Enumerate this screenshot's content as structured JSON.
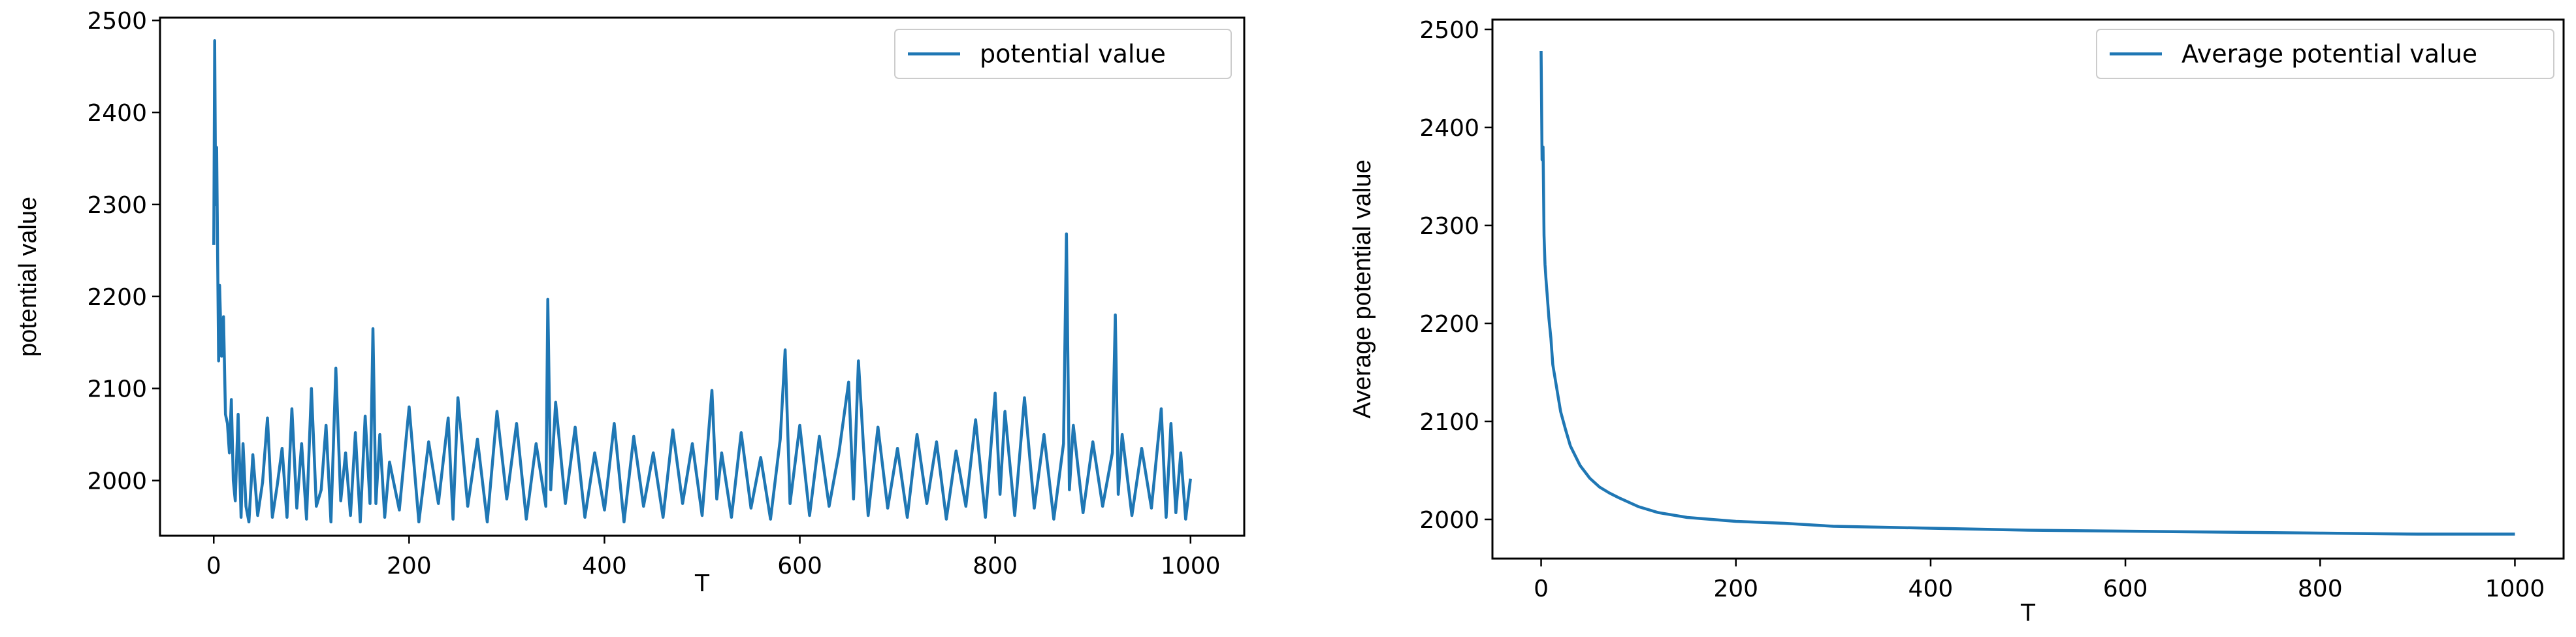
{
  "chart_data": [
    {
      "type": "line",
      "xlabel": "T",
      "ylabel": "potential value",
      "xlim": [
        -55,
        1055
      ],
      "ylim": [
        1940,
        2503
      ],
      "xticks": [
        0,
        200,
        400,
        600,
        800,
        1000
      ],
      "yticks": [
        2000,
        2100,
        2200,
        2300,
        2400,
        2500
      ],
      "xtick_labels": [
        "0",
        "200",
        "400",
        "600",
        "800",
        "1000"
      ],
      "ytick_labels": [
        "2000",
        "2100",
        "2200",
        "2300",
        "2400",
        "2500"
      ],
      "legend_position": "top-right",
      "legend_label": "potential value",
      "color": "#1f77b4",
      "series": [
        {
          "name": "potential value",
          "x": [
            0,
            1,
            2,
            3,
            4,
            5,
            6,
            8,
            10,
            12,
            14,
            16,
            18,
            20,
            22,
            25,
            28,
            30,
            33,
            36,
            40,
            45,
            50,
            55,
            60,
            65,
            70,
            75,
            80,
            85,
            90,
            95,
            100,
            105,
            110,
            115,
            120,
            125,
            130,
            135,
            140,
            145,
            150,
            155,
            160,
            163,
            166,
            170,
            175,
            180,
            190,
            200,
            210,
            220,
            230,
            240,
            245,
            250,
            260,
            270,
            280,
            290,
            300,
            310,
            320,
            330,
            340,
            342,
            345,
            350,
            360,
            370,
            380,
            390,
            400,
            410,
            420,
            430,
            440,
            450,
            460,
            470,
            480,
            490,
            500,
            510,
            515,
            520,
            530,
            540,
            550,
            560,
            570,
            580,
            585,
            590,
            600,
            610,
            620,
            630,
            640,
            650,
            655,
            660,
            665,
            670,
            680,
            690,
            700,
            710,
            720,
            730,
            740,
            750,
            760,
            770,
            780,
            790,
            800,
            805,
            810,
            820,
            830,
            840,
            850,
            860,
            870,
            873,
            876,
            880,
            890,
            900,
            910,
            920,
            923,
            926,
            930,
            940,
            950,
            960,
            970,
            975,
            980,
            985,
            990,
            995,
            1000
          ],
          "values": [
            2256,
            2478,
            2300,
            2362,
            2245,
            2130,
            2212,
            2135,
            2178,
            2072,
            2062,
            2030,
            2088,
            2000,
            1978,
            2072,
            1960,
            2040,
            1972,
            1955,
            2028,
            1962,
            1998,
            2068,
            1960,
            1995,
            2035,
            1960,
            2078,
            1970,
            2040,
            1958,
            2100,
            1972,
            1990,
            2060,
            1955,
            2122,
            1978,
            2030,
            1962,
            2052,
            1955,
            2070,
            1975,
            2165,
            1975,
            2050,
            1960,
            2020,
            1968,
            2080,
            1955,
            2042,
            1975,
            2068,
            1958,
            2090,
            1972,
            2045,
            1955,
            2075,
            1980,
            2062,
            1958,
            2040,
            1972,
            2197,
            1990,
            2085,
            1975,
            2058,
            1960,
            2030,
            1968,
            2062,
            1955,
            2048,
            1972,
            2030,
            1960,
            2055,
            1975,
            2040,
            1962,
            2098,
            1980,
            2030,
            1960,
            2052,
            1970,
            2025,
            1958,
            2045,
            2142,
            1975,
            2060,
            1962,
            2048,
            1972,
            2030,
            2107,
            1980,
            2130,
            2040,
            1962,
            2058,
            1970,
            2035,
            1960,
            2050,
            1975,
            2042,
            1958,
            2032,
            1972,
            2066,
            1960,
            2095,
            1985,
            2075,
            1962,
            2090,
            1970,
            2050,
            1958,
            2040,
            2268,
            1990,
            2060,
            1965,
            2042,
            1972,
            2030,
            2180,
            1985,
            2050,
            1962,
            2035,
            1970,
            2078,
            1960,
            2062,
            1965,
            2030,
            1958,
            2002
          ]
        }
      ]
    },
    {
      "type": "line",
      "xlabel": "T",
      "ylabel": "Average potential value",
      "xlim": [
        -50,
        1050
      ],
      "ylim": [
        1960,
        2510
      ],
      "xticks": [
        0,
        200,
        400,
        600,
        800,
        1000
      ],
      "yticks": [
        2000,
        2100,
        2200,
        2300,
        2400,
        2500
      ],
      "xtick_labels": [
        "0",
        "200",
        "400",
        "600",
        "800",
        "1000"
      ],
      "ytick_labels": [
        "2000",
        "2100",
        "2200",
        "2300",
        "2400",
        "2500"
      ],
      "legend_position": "top-right",
      "legend_label": "Average potential value",
      "color": "#1f77b4",
      "series": [
        {
          "name": "Average potential value",
          "x": [
            0,
            1,
            2,
            3,
            4,
            5,
            6,
            8,
            10,
            12,
            15,
            20,
            25,
            30,
            40,
            50,
            60,
            70,
            80,
            100,
            120,
            150,
            200,
            250,
            300,
            350,
            400,
            450,
            500,
            600,
            700,
            800,
            900,
            1000
          ],
          "values": [
            2478,
            2367,
            2380,
            2290,
            2260,
            2245,
            2232,
            2205,
            2185,
            2158,
            2140,
            2110,
            2092,
            2075,
            2055,
            2042,
            2033,
            2027,
            2022,
            2013,
            2007,
            2002,
            1998,
            1996,
            1993,
            1992,
            1991,
            1990,
            1989,
            1988,
            1987,
            1986,
            1985,
            1985
          ]
        }
      ]
    }
  ]
}
